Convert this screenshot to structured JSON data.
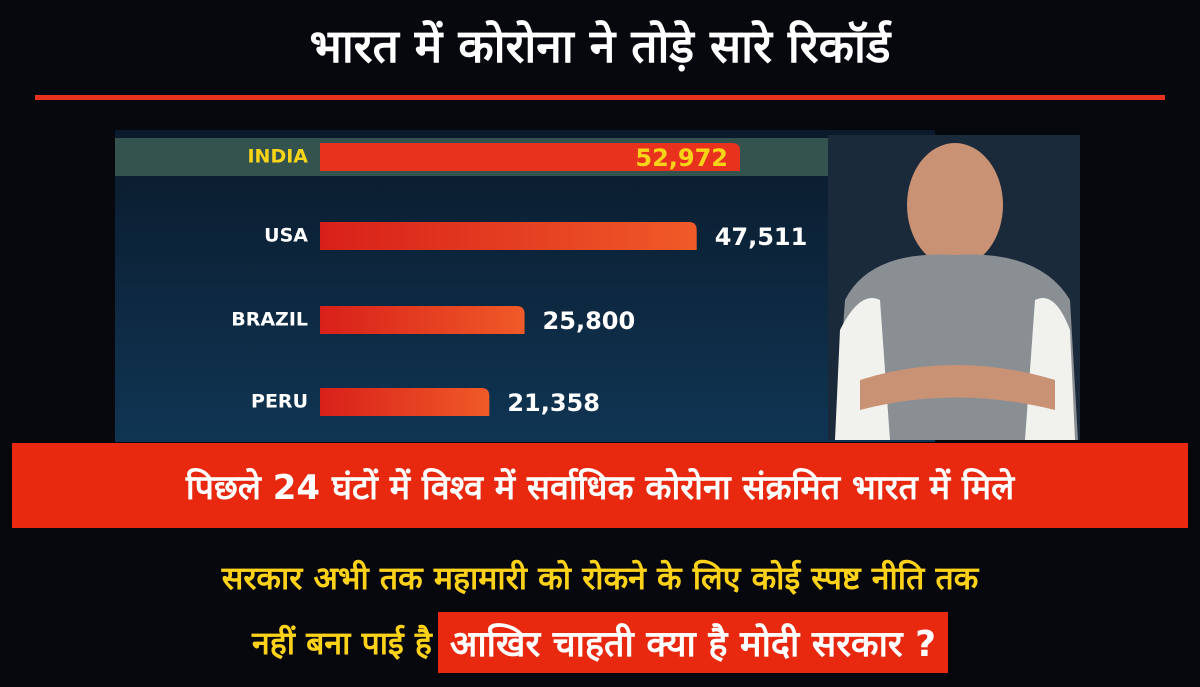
{
  "header": {
    "title": "भारत में कोरोना ने तोड़े सारे रिकॉर्ड"
  },
  "chart_data": {
    "type": "bar",
    "orientation": "horizontal",
    "categories": [
      "INDIA",
      "USA",
      "BRAZIL",
      "PERU"
    ],
    "values": [
      52972,
      47511,
      25800,
      21358
    ],
    "value_labels": [
      "52,972",
      "47,511",
      "25,800",
      "21,358"
    ],
    "color": "#e8321e"
  },
  "banner": {
    "text": "पिछले 24 घंटों में विश्व में सर्वाधिक कोरोना संक्रमित भारत में मिले"
  },
  "footer": {
    "line1": "सरकार अभी तक महामारी को रोकने के लिए कोई स्पष्ट नीति तक",
    "line2_start": "नहीं बना पाई है",
    "line2_highlight": "आखिर चाहती क्या है मोदी सरकार ?"
  }
}
